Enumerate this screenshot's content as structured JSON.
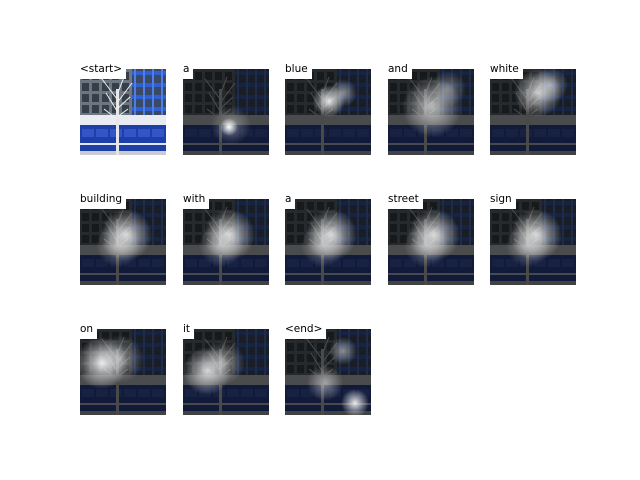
{
  "figure": {
    "tokens": [
      {
        "word": "<start>",
        "kind": "original"
      },
      {
        "word": "a",
        "kind": "attention",
        "focus": "lower-center"
      },
      {
        "word": "blue",
        "kind": "attention",
        "focus": "upper-center"
      },
      {
        "word": "and",
        "kind": "attention",
        "focus": "center-wide"
      },
      {
        "word": "white",
        "kind": "attention",
        "focus": "upper-right"
      },
      {
        "word": "building",
        "kind": "attention",
        "focus": "center"
      },
      {
        "word": "with",
        "kind": "attention",
        "focus": "center"
      },
      {
        "word": "a",
        "kind": "attention",
        "focus": "center"
      },
      {
        "word": "street",
        "kind": "attention",
        "focus": "center"
      },
      {
        "word": "sign",
        "kind": "attention",
        "focus": "center"
      },
      {
        "word": "on",
        "kind": "attention",
        "focus": "left-wide"
      },
      {
        "word": "it",
        "kind": "attention",
        "focus": "center-left"
      },
      {
        "word": "<end>",
        "kind": "attention",
        "focus": "right-bottom"
      }
    ],
    "colors": {
      "background": "#ffffff",
      "sky": "#9aa3ad",
      "hoarding_blue": "#1f3fa8",
      "scaffold_blue": "#2f5fd0",
      "attention_dark": "#0c0c0c"
    }
  }
}
